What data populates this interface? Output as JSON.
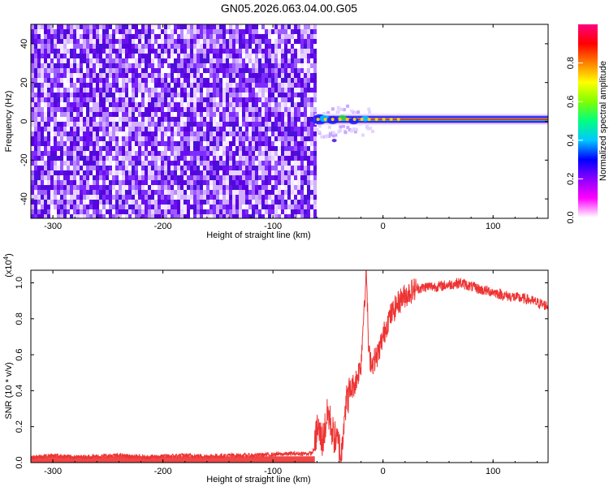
{
  "title": "GN05.2026.063.04.00.G05",
  "chart_data": [
    {
      "type": "heatmap",
      "xlabel": "Height of straight line (km)",
      "ylabel": "Frequency (Hz)",
      "xlim": [
        -320,
        150
      ],
      "ylim": [
        -50,
        50
      ],
      "xticks": [
        -300,
        -200,
        -100,
        0,
        100
      ],
      "yticks": [
        -40,
        -20,
        0,
        20,
        40
      ],
      "noise_region_x": [
        -320,
        -62
      ],
      "signal_start_x": -62,
      "signal_frequency": 1,
      "colorbar": {
        "label": "Normalized spectral amplitude",
        "range": [
          0.0,
          1.0
        ],
        "ticks": [
          0.0,
          0.2,
          0.4,
          0.6,
          0.8
        ],
        "colors": [
          "#ffffff",
          "#ff00ff",
          "#8a00ff",
          "#0000ff",
          "#00c8ff",
          "#00ff80",
          "#7fff00",
          "#ffff00",
          "#ff8000",
          "#ff0000",
          "#ff0080"
        ]
      }
    },
    {
      "type": "line",
      "xlabel": "Height of straight line (km)",
      "ylabel": "SNR (10 * v/v)",
      "y_multiplier_label": "(x10",
      "y_multiplier_exp": "4",
      "xlim": [
        -320,
        150
      ],
      "ylim": [
        0,
        1.07
      ],
      "xticks": [
        -300,
        -200,
        -100,
        0,
        100
      ],
      "yticks": [
        0.0,
        0.2,
        0.4,
        0.6,
        0.8,
        1.0
      ],
      "color": "#ee3333",
      "series": [
        {
          "x": [
            -320,
            -300,
            -280,
            -260,
            -240,
            -220,
            -200,
            -180,
            -160,
            -140,
            -120,
            -100,
            -80,
            -65,
            -62,
            -60,
            -55,
            -50,
            -45,
            -40,
            -38,
            -35,
            -30,
            -25,
            -20,
            -17,
            -15,
            -13,
            -10,
            -5,
            0,
            5,
            10,
            15,
            20,
            25,
            30,
            35,
            40,
            50,
            60,
            70,
            80,
            90,
            100,
            110,
            120,
            130,
            140,
            150
          ],
          "y": [
            0.03,
            0.04,
            0.03,
            0.035,
            0.04,
            0.03,
            0.035,
            0.04,
            0.035,
            0.04,
            0.04,
            0.045,
            0.05,
            0.05,
            0.08,
            0.2,
            0.12,
            0.28,
            0.15,
            0.1,
            0.02,
            0.3,
            0.4,
            0.45,
            0.55,
            0.9,
            1.05,
            0.6,
            0.55,
            0.6,
            0.7,
            0.8,
            0.85,
            0.9,
            0.93,
            0.95,
            0.97,
            0.97,
            0.98,
            0.98,
            0.99,
            1.0,
            0.98,
            0.96,
            0.95,
            0.93,
            0.92,
            0.91,
            0.89,
            0.87
          ]
        }
      ]
    }
  ]
}
